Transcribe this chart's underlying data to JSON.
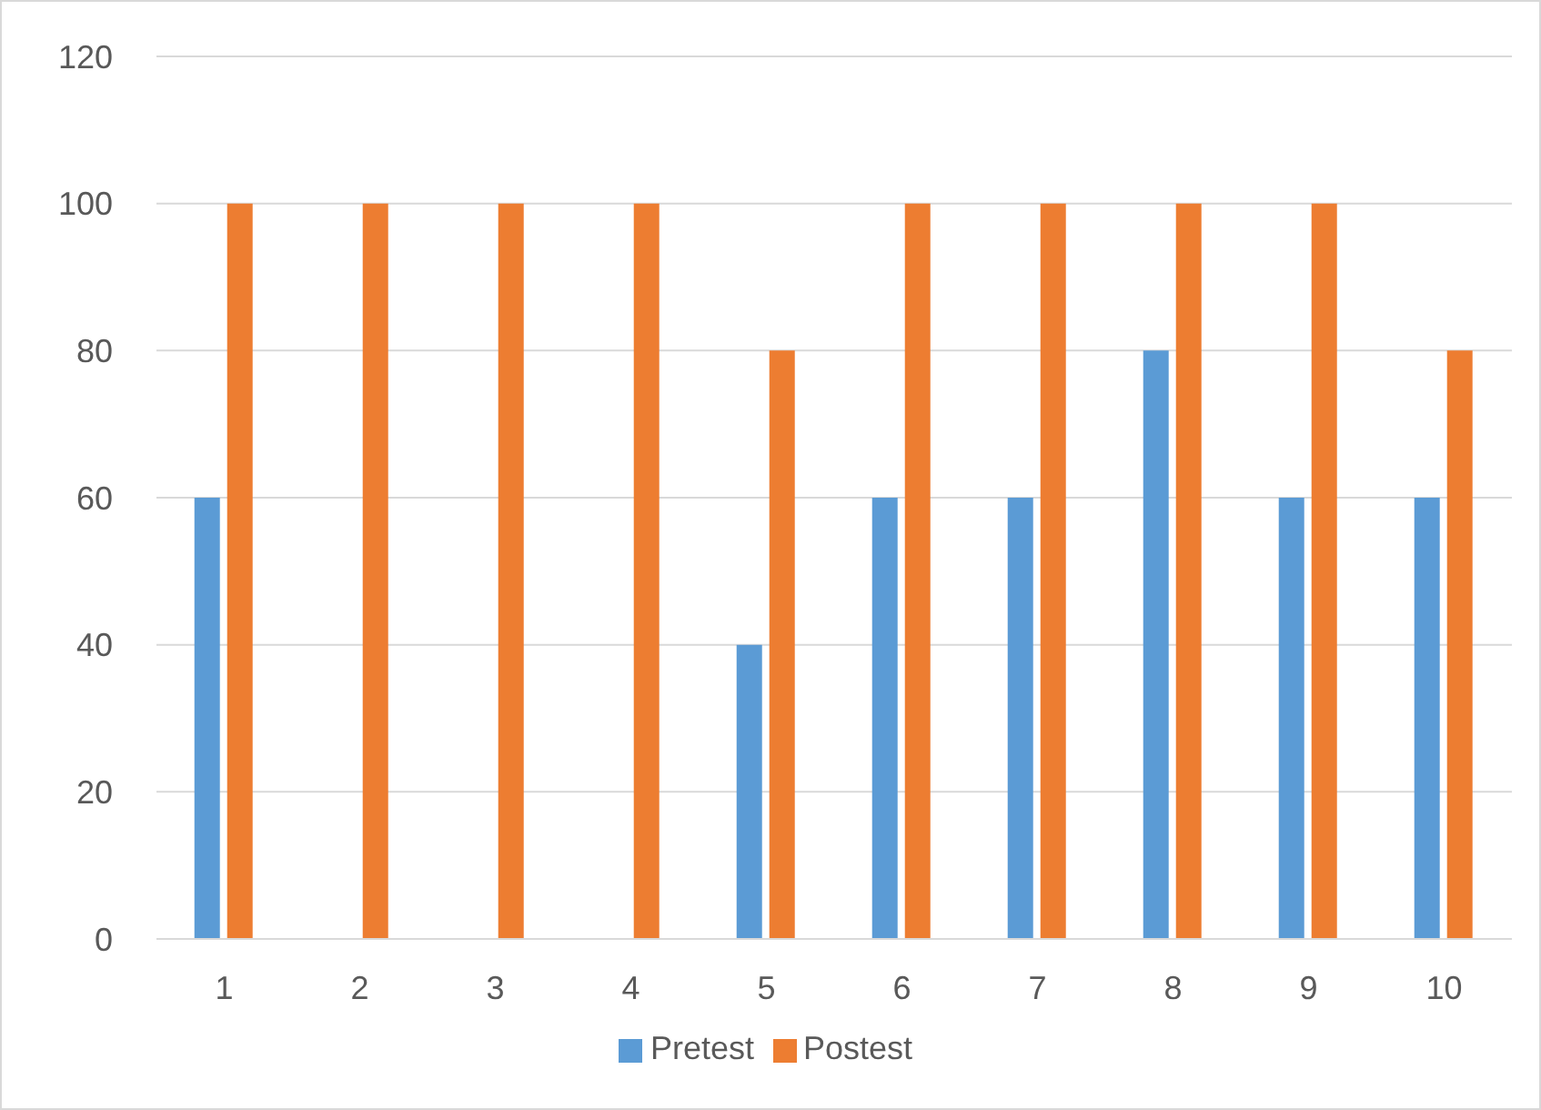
{
  "chart_data": {
    "type": "bar",
    "categories": [
      "1",
      "2",
      "3",
      "4",
      "5",
      "6",
      "7",
      "8",
      "9",
      "10"
    ],
    "series": [
      {
        "name": "Pretest",
        "color": "#5b9bd5",
        "values": [
          60,
          0,
          0,
          0,
          40,
          60,
          60,
          80,
          60,
          60
        ]
      },
      {
        "name": "Postest",
        "color": "#ed7d31",
        "values": [
          100,
          100,
          100,
          100,
          80,
          100,
          100,
          100,
          100,
          80
        ]
      }
    ],
    "ylim": [
      0,
      120
    ],
    "yticks": [
      0,
      20,
      40,
      60,
      80,
      100,
      120
    ],
    "grid": "y",
    "legend": "bottom"
  }
}
